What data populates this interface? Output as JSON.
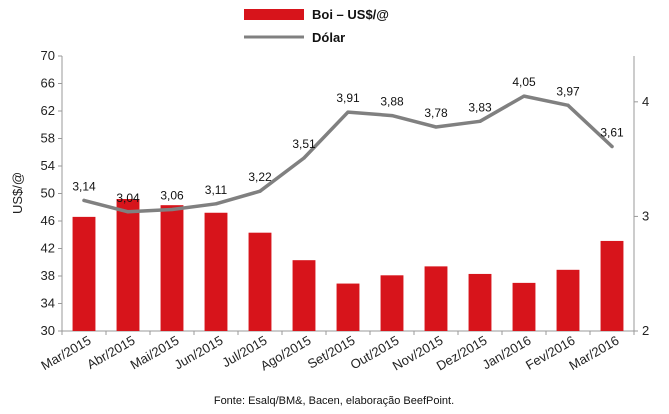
{
  "chart_data": {
    "type": "bar",
    "categories": [
      "Mar/2015",
      "Abr/2015",
      "Mai/2015",
      "Jun/2015",
      "Jul/2015",
      "Ago/2015",
      "Set/2015",
      "Out/2015",
      "Nov/2015",
      "Dez/2015",
      "Jan/2016",
      "Fev/2016",
      "Mar/2016"
    ],
    "series": [
      {
        "name": "Boi – US$/@",
        "type": "bar",
        "axis": "left",
        "color": "#d7141b",
        "values": [
          46.6,
          49.2,
          48.3,
          47.2,
          44.3,
          40.3,
          36.9,
          38.1,
          39.4,
          38.3,
          37.0,
          38.9,
          43.1
        ]
      },
      {
        "name": "Dólar",
        "type": "line",
        "axis": "right",
        "color": "#808080",
        "values": [
          3.14,
          3.04,
          3.06,
          3.11,
          3.22,
          3.51,
          3.91,
          3.88,
          3.78,
          3.83,
          4.05,
          3.97,
          3.61
        ],
        "labels": [
          "3,14",
          "3,04",
          "3,06",
          "3,11",
          "3,22",
          "3,51",
          "3,91",
          "3,88",
          "3,78",
          "3,83",
          "4,05",
          "3,97",
          "3,61"
        ]
      }
    ],
    "ylabel": "US$/@",
    "ylim": [
      30,
      70
    ],
    "yticks": [
      "30",
      "34",
      "38",
      "42",
      "46",
      "50",
      "54",
      "58",
      "62",
      "66",
      "70"
    ],
    "y2lim": [
      2,
      4.4
    ],
    "y2ticks": [
      "2",
      "3",
      "4"
    ],
    "legend_position": "top-center",
    "grid": false,
    "source": "Fonte: Esalq/BM&, Bacen, elaboração BeefPoint."
  }
}
